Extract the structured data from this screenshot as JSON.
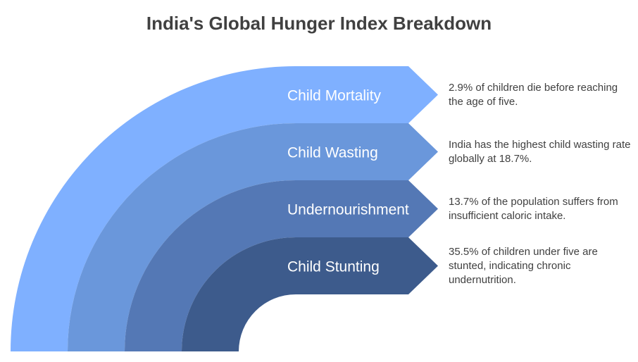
{
  "title": "India's Global Hunger Index Breakdown",
  "items": [
    {
      "label": "Child Mortality",
      "description": "2.9% of children die before reaching the age of five.",
      "color": "#7fb0ff"
    },
    {
      "label": "Child Wasting",
      "description": "India has the highest child wasting rate globally at 18.7%.",
      "color": "#6a97db"
    },
    {
      "label": "Undernourishment",
      "description": "13.7% of the population suffers from insufficient caloric intake.",
      "color": "#5478b5"
    },
    {
      "label": "Child Stunting",
      "description": "35.5% of children under five are stunted, indicating chronic undernutrition.",
      "color": "#3d5b8c"
    }
  ]
}
